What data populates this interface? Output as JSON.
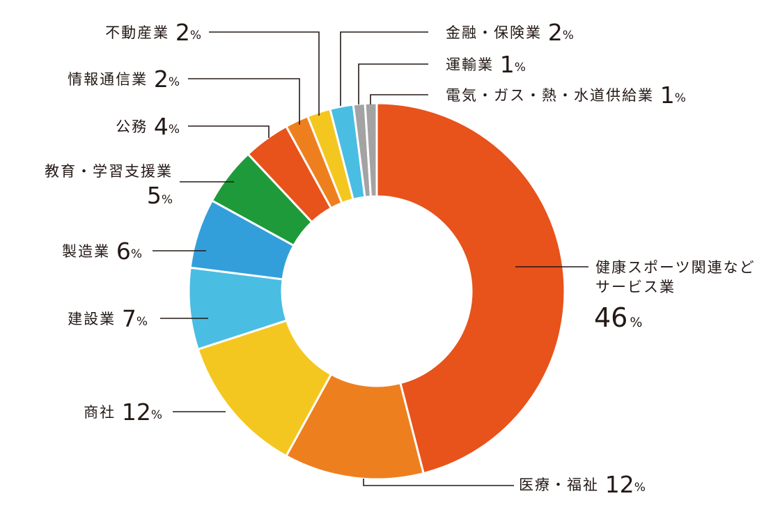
{
  "chart_data": {
    "type": "pie",
    "style": "donut",
    "unit": "%",
    "slices": [
      {
        "label": "健康スポーツ関連など",
        "label2": "サービス業",
        "value": 46,
        "color": "#E8521B"
      },
      {
        "label": "医療・福祉",
        "value": 12,
        "color": "#EE7F1F"
      },
      {
        "label": "商社",
        "value": 12,
        "color": "#F4C720"
      },
      {
        "label": "建設業",
        "value": 7,
        "color": "#4ABDE3"
      },
      {
        "label": "製造業",
        "value": 6,
        "color": "#339FDA"
      },
      {
        "label": "教育・学習支援業",
        "value": 5,
        "color": "#1E9A3B"
      },
      {
        "label": "公務",
        "value": 4,
        "color": "#E8521B"
      },
      {
        "label": "情報通信業",
        "value": 2,
        "color": "#EE7F1F"
      },
      {
        "label": "不動産業",
        "value": 2,
        "color": "#F4C720"
      },
      {
        "label": "金融・保険業",
        "value": 2,
        "color": "#4ABDE3"
      },
      {
        "label": "運輸業",
        "value": 1,
        "color": "#A3A3A3"
      },
      {
        "label": "電気・ガス・熱・水道供給業",
        "value": 1,
        "color": "#A3A3A3"
      }
    ]
  }
}
